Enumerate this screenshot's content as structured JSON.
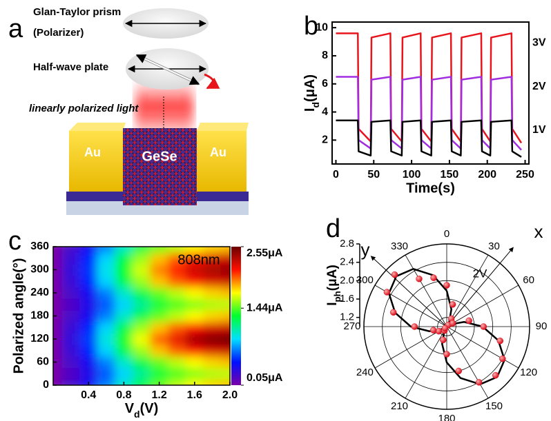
{
  "diagram": {
    "panel_label": "a",
    "polarizer": [
      "Glan-Taylor prism",
      "(Polarizer)"
    ],
    "waveplate": "Half-wave plate",
    "light": "linearly polarized light",
    "electrodes": [
      "Au",
      "Au"
    ],
    "channel": "GeSe"
  },
  "chart_data": [
    {
      "type": "line",
      "panel_label": "b",
      "xlabel": "Time(s)",
      "ylabel": [
        "I",
        "d",
        "(μA)"
      ],
      "x": [
        0,
        29,
        30,
        46,
        47,
        72,
        73,
        87,
        88,
        112,
        113,
        126,
        127,
        152,
        153,
        165,
        166,
        192,
        193,
        204,
        205,
        232,
        233,
        245
      ],
      "series": [
        {
          "name": "3V",
          "color": "#e8141c",
          "values": [
            9.6,
            9.6,
            2.8,
            1.9,
            9.3,
            9.6,
            2.8,
            1.9,
            9.3,
            9.6,
            2.8,
            1.9,
            9.3,
            9.6,
            2.8,
            1.9,
            9.3,
            9.6,
            2.8,
            1.9,
            9.3,
            9.6,
            2.8,
            1.8
          ]
        },
        {
          "name": "2V",
          "color": "#a12de0",
          "values": [
            6.5,
            6.5,
            2.0,
            1.4,
            6.3,
            6.5,
            2.0,
            1.4,
            6.3,
            6.5,
            2.0,
            1.4,
            6.3,
            6.5,
            2.0,
            1.4,
            6.3,
            6.5,
            2.0,
            1.4,
            6.3,
            6.5,
            2.0,
            1.3
          ]
        },
        {
          "name": "1V",
          "color": "#000000",
          "values": [
            3.4,
            3.4,
            1.2,
            0.9,
            3.3,
            3.4,
            1.2,
            0.9,
            3.3,
            3.4,
            1.2,
            0.9,
            3.3,
            3.4,
            1.2,
            0.9,
            3.3,
            3.4,
            1.2,
            0.9,
            3.3,
            3.4,
            1.2,
            0.8
          ]
        }
      ],
      "xlim": [
        -5,
        255
      ],
      "ylim": [
        0.3,
        10.4
      ],
      "xticks": [
        0,
        50,
        100,
        150,
        200,
        250
      ],
      "yticks": [
        2,
        4,
        6,
        8,
        10
      ]
    },
    {
      "type": "heatmap",
      "panel_label": "c",
      "xlabel": [
        "V",
        "d",
        "(V)"
      ],
      "ylabel": "Polarized angle(°)",
      "annotation": "808nm",
      "x": [
        0,
        0.2,
        0.4,
        0.6,
        0.8,
        1.0,
        1.2,
        1.4,
        1.6,
        1.8,
        2.0
      ],
      "y": [
        0,
        30,
        60,
        90,
        120,
        150,
        180,
        210,
        240,
        270,
        300,
        330,
        360
      ],
      "z": [
        [
          0.05,
          0.22,
          0.4,
          0.69,
          0.99,
          1.24,
          1.46,
          1.61,
          1.72,
          1.79,
          1.83
        ],
        [
          0.05,
          0.19,
          0.35,
          0.61,
          0.86,
          1.09,
          1.28,
          1.41,
          1.5,
          1.57,
          1.6
        ],
        [
          0.05,
          0.22,
          0.4,
          0.69,
          0.99,
          1.24,
          1.46,
          1.61,
          1.72,
          1.79,
          1.83
        ],
        [
          0.05,
          0.27,
          0.5,
          0.86,
          1.23,
          1.55,
          1.82,
          2.0,
          2.14,
          2.23,
          2.28
        ],
        [
          0.05,
          0.3,
          0.55,
          0.95,
          1.35,
          1.7,
          2.0,
          2.2,
          2.4,
          2.5,
          2.55
        ],
        [
          0.05,
          0.27,
          0.5,
          0.86,
          1.23,
          1.55,
          1.82,
          2.0,
          2.14,
          2.23,
          2.28
        ],
        [
          0.05,
          0.22,
          0.4,
          0.69,
          0.99,
          1.24,
          1.46,
          1.61,
          1.72,
          1.79,
          1.83
        ],
        [
          0.05,
          0.19,
          0.35,
          0.61,
          0.86,
          1.09,
          1.28,
          1.41,
          1.5,
          1.57,
          1.6
        ],
        [
          0.05,
          0.22,
          0.4,
          0.69,
          0.99,
          1.24,
          1.46,
          1.61,
          1.72,
          1.79,
          1.83
        ],
        [
          0.05,
          0.27,
          0.5,
          0.86,
          1.23,
          1.55,
          1.82,
          2.0,
          2.14,
          2.23,
          2.28
        ],
        [
          0.05,
          0.29,
          0.53,
          0.92,
          1.31,
          1.65,
          1.94,
          2.13,
          2.28,
          2.38,
          2.43
        ],
        [
          0.05,
          0.27,
          0.5,
          0.86,
          1.23,
          1.55,
          1.82,
          2.0,
          2.14,
          2.23,
          2.28
        ],
        [
          0.05,
          0.22,
          0.4,
          0.69,
          0.99,
          1.24,
          1.46,
          1.61,
          1.72,
          1.79,
          1.83
        ]
      ],
      "colormap": [
        "#7a00a8",
        "#0010ff",
        "#00e0ff",
        "#00ff30",
        "#ffff00",
        "#ff1000",
        "#6a0000"
      ],
      "zlim": [
        0.05,
        2.55
      ],
      "zticks": [
        {
          "value": 0.05,
          "label": "0.05μA"
        },
        {
          "value": 1.44,
          "label": "1.44μA"
        },
        {
          "value": 2.55,
          "label": "2.55μA"
        }
      ],
      "xlim": [
        0,
        2.0
      ],
      "ylim": [
        0,
        360
      ],
      "xticks": [
        0.4,
        0.8,
        1.2,
        1.6,
        {
          "value": 2.0,
          "label": "2.0"
        }
      ],
      "yticks": [
        0,
        60,
        120,
        180,
        240,
        300,
        360
      ]
    },
    {
      "type": "polar",
      "panel_label": "d",
      "rlabel": [
        "I",
        "ph",
        "(μA)"
      ],
      "annotation": "2V",
      "axis_names": [
        "x",
        "y"
      ],
      "theta": [
        0,
        15,
        30,
        45,
        60,
        75,
        90,
        105,
        120,
        135,
        150,
        165,
        180,
        195,
        210,
        225,
        240,
        255,
        270,
        285,
        300,
        315,
        330,
        345
      ],
      "values": [
        1.9,
        1.5,
        1.2,
        1.05,
        1.15,
        1.5,
        1.8,
        2.2,
        2.4,
        2.5,
        2.4,
        2.0,
        1.6,
        1.3,
        1.1,
        1.05,
        1.2,
        1.3,
        1.7,
        2.2,
        2.5,
        2.6,
        2.2,
        2.1
      ],
      "point_color": "#e8141c",
      "fit": {
        "color": "#000000",
        "theta": [
          0,
          15,
          30,
          45,
          60,
          75,
          90,
          105,
          120,
          135,
          150,
          165,
          180,
          195,
          210,
          225,
          240,
          255,
          270,
          285,
          300,
          315,
          330,
          345,
          360
        ],
        "r": [
          1.78,
          1.39,
          1.1,
          1.0,
          1.1,
          1.39,
          1.78,
          2.16,
          2.45,
          2.55,
          2.45,
          2.16,
          1.78,
          1.39,
          1.1,
          1.0,
          1.1,
          1.39,
          1.78,
          2.16,
          2.45,
          2.55,
          2.45,
          2.16,
          1.78
        ]
      },
      "rlim": [
        1.0,
        2.8
      ],
      "rticks": [
        1.2,
        1.6,
        {
          "value": 2.0,
          "label": "2.0"
        },
        2.4,
        2.8
      ],
      "thetaticks": [
        0,
        30,
        60,
        90,
        120,
        150,
        180,
        210,
        240,
        270,
        300,
        330
      ]
    }
  ]
}
